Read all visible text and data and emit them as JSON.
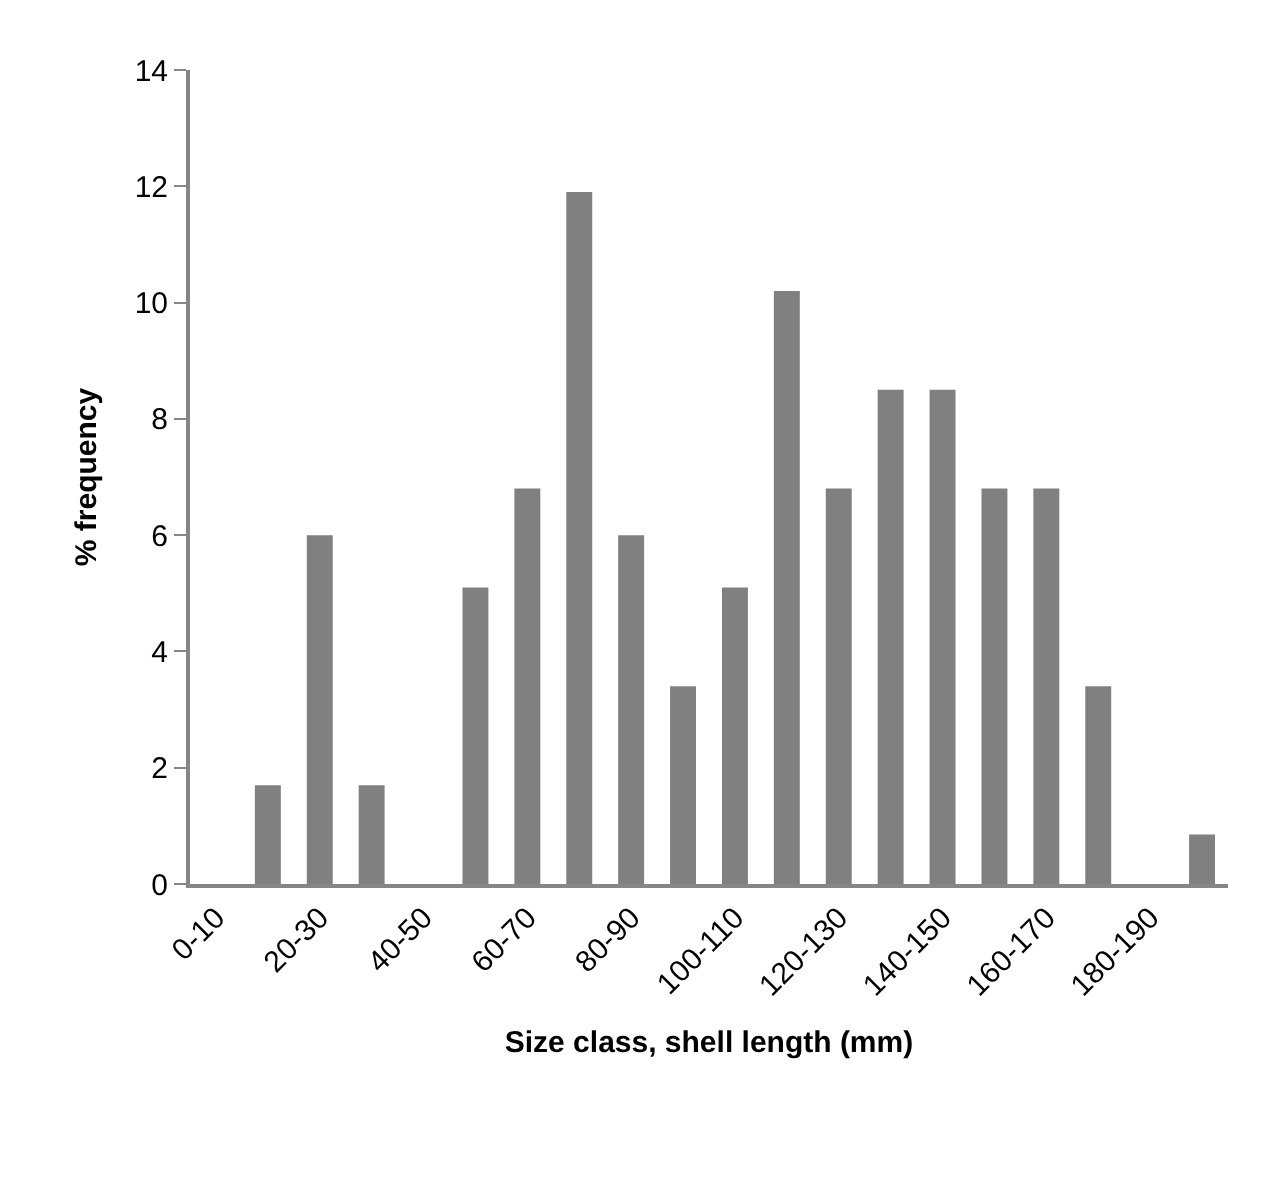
{
  "chart_data": {
    "type": "bar",
    "xlabel": "Size class, shell length (mm)",
    "ylabel": "% frequency",
    "categories": [
      "0-10",
      null,
      "20-30",
      null,
      "40-50",
      null,
      "60-70",
      null,
      "80-90",
      null,
      "100-110",
      null,
      "120-130",
      null,
      "140-150",
      null,
      "160-170",
      null,
      "180-190",
      null
    ],
    "values": [
      0,
      1.7,
      6,
      1.7,
      0,
      5.1,
      6.8,
      11.9,
      6,
      3.4,
      5.1,
      10.2,
      6.8,
      8.5,
      8.5,
      6.8,
      6.8,
      3.4,
      0,
      0.85
    ],
    "color": "#808080",
    "ylim": [
      0,
      14
    ],
    "yticks": [
      0,
      2,
      4,
      6,
      8,
      10,
      12,
      14
    ]
  }
}
